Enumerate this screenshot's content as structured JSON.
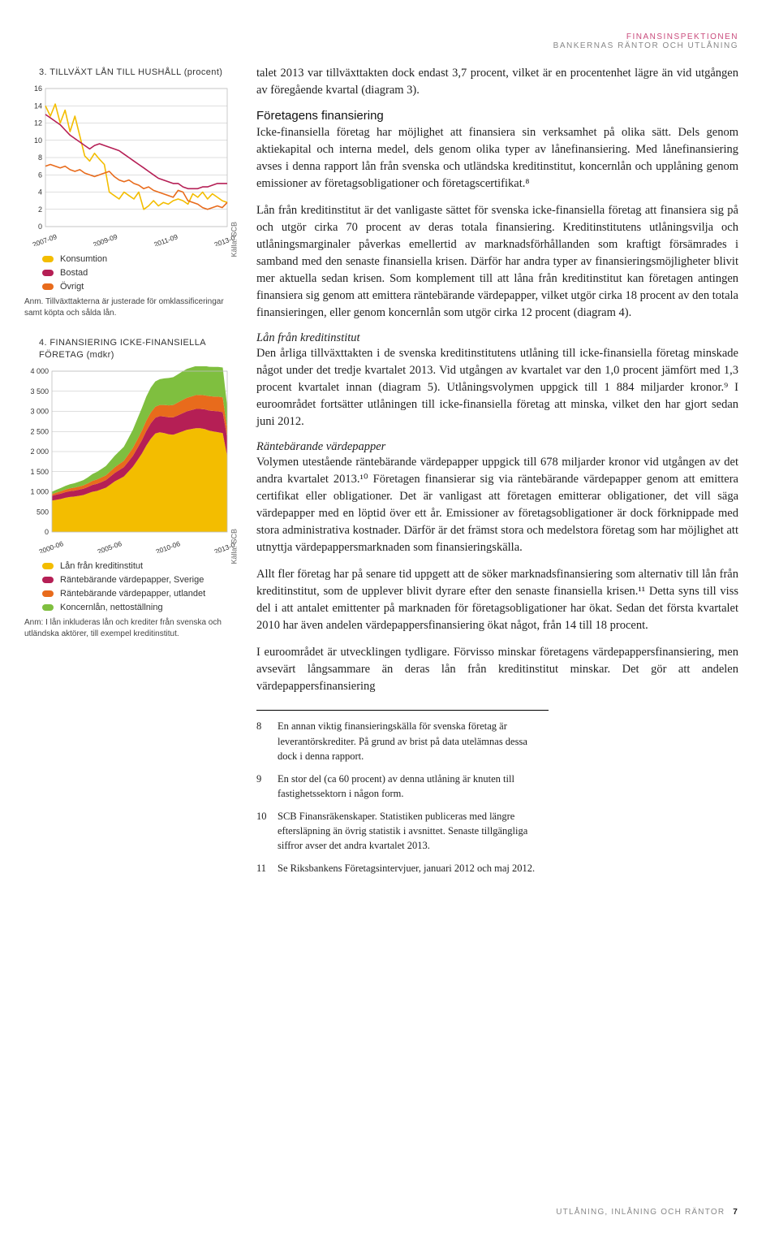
{
  "header": {
    "line1": "FINANSINSPEKTIONEN",
    "line2": "BANKERNAS RÄNTOR OCH UTLÅNING"
  },
  "chart3": {
    "title": "3. TILLVÄXT LÅN TILL HUSHÅLL (procent)",
    "type": "line",
    "ylim": [
      0,
      16
    ],
    "ytick_step": 2,
    "yticks": [
      0,
      2,
      4,
      6,
      8,
      10,
      12,
      14,
      16
    ],
    "x_labels": [
      "2007-09",
      "2009-09",
      "2011-09",
      "2013-09"
    ],
    "grid_color": "#bfbfbf",
    "line_width": 1.6,
    "series": {
      "konsumtion": {
        "label": "Konsumtion",
        "color": "#f3bd00",
        "points": [
          14.0,
          12.8,
          14.2,
          12.0,
          13.5,
          11.0,
          12.8,
          10.5,
          8.2,
          7.6,
          8.5,
          7.8,
          7.2,
          4.0,
          3.6,
          3.2,
          4.0,
          3.6,
          3.2,
          4.0,
          2.0,
          2.4,
          3.0,
          2.4,
          2.8,
          2.6,
          3.0,
          3.2,
          3.0,
          2.6,
          3.8,
          3.4,
          4.0,
          3.2,
          3.8,
          3.4,
          3.0,
          2.8
        ]
      },
      "bostad": {
        "label": "Bostad",
        "color": "#b51f55",
        "points": [
          13.0,
          12.6,
          12.2,
          11.8,
          11.2,
          10.6,
          10.2,
          9.8,
          9.4,
          9.0,
          9.4,
          9.6,
          9.4,
          9.2,
          9.0,
          8.8,
          8.4,
          8.0,
          7.6,
          7.2,
          6.8,
          6.4,
          6.0,
          5.6,
          5.4,
          5.2,
          5.0,
          5.0,
          4.6,
          4.4,
          4.4,
          4.4,
          4.6,
          4.6,
          4.8,
          5.0,
          5.0,
          5.0
        ]
      },
      "ovrigt": {
        "label": "Övrigt",
        "color": "#e86b1c",
        "points": [
          7.0,
          7.2,
          7.0,
          6.8,
          7.0,
          6.6,
          6.4,
          6.6,
          6.2,
          6.0,
          5.8,
          6.0,
          6.2,
          6.4,
          5.8,
          5.4,
          5.2,
          5.4,
          5.0,
          4.8,
          4.4,
          4.6,
          4.2,
          4.0,
          3.8,
          3.6,
          3.4,
          4.2,
          4.0,
          3.0,
          2.8,
          2.6,
          2.2,
          2.0,
          2.2,
          2.4,
          2.2,
          2.8
        ]
      }
    },
    "source": "Källa: SCB",
    "note": "Anm. Tillväxttakterna är justerade för omklassificeringar samt köpta och sålda lån."
  },
  "chart4": {
    "title": "4. FINANSIERING ICKE-FINANSIELLA FÖRETAG (mdkr)",
    "type": "area",
    "ylim": [
      0,
      4000
    ],
    "ytick_step": 500,
    "yticks": [
      0,
      500,
      1000,
      1500,
      2000,
      2500,
      3000,
      3500,
      4000
    ],
    "x_labels": [
      "2000-06",
      "2005-06",
      "2010-06",
      "2013-06"
    ],
    "grid_color": "#bfbfbf",
    "colors": {
      "lan": "#f3bd00",
      "rb_sv": "#b51f55",
      "rb_ut": "#e86b1c",
      "koncern": "#7fbf3f"
    },
    "stack": [
      {
        "key": "lan",
        "label": "Lån från kreditinstitut",
        "points": [
          780,
          800,
          820,
          850,
          870,
          880,
          900,
          920,
          960,
          1000,
          1020,
          1060,
          1100,
          1180,
          1260,
          1320,
          1380,
          1500,
          1620,
          1780,
          1950,
          2150,
          2320,
          2450,
          2480,
          2460,
          2430,
          2420,
          2460,
          2500,
          2540,
          2560,
          2580,
          2580,
          2560,
          2520,
          2500,
          2480,
          2460,
          1884
        ]
      },
      {
        "key": "rb_sv",
        "label": "Räntebärande värdepapper, Sverige",
        "points": [
          120,
          130,
          135,
          140,
          145,
          148,
          150,
          155,
          160,
          170,
          175,
          180,
          190,
          200,
          210,
          220,
          230,
          250,
          270,
          300,
          330,
          360,
          380,
          390,
          400,
          410,
          420,
          430,
          440,
          450,
          460,
          470,
          480,
          480,
          490,
          500,
          510,
          520,
          520,
          460
        ]
      },
      {
        "key": "rb_ut",
        "label": "Räntebärande värdepapper, utlandet",
        "points": [
          40,
          50,
          60,
          65,
          70,
          75,
          80,
          85,
          90,
          100,
          110,
          115,
          120,
          130,
          140,
          150,
          160,
          180,
          200,
          220,
          240,
          260,
          270,
          275,
          280,
          290,
          300,
          310,
          320,
          330,
          335,
          340,
          345,
          350,
          350,
          360,
          360,
          365,
          370,
          218
        ]
      },
      {
        "key": "koncern",
        "label": "Koncernlån, nettoställning",
        "points": [
          60,
          70,
          80,
          90,
          100,
          110,
          120,
          130,
          150,
          170,
          190,
          210,
          230,
          260,
          290,
          320,
          350,
          400,
          450,
          510,
          560,
          600,
          620,
          630,
          640,
          660,
          680,
          690,
          700,
          710,
          720,
          720,
          720,
          720,
          730,
          730,
          735,
          740,
          740,
          560
        ]
      }
    ],
    "source": "Källa: SCB",
    "note": "Anm: I lån inkluderas lån och krediter från svenska och utländska aktörer, till exempel kreditinstitut."
  },
  "body": {
    "p1": "talet 2013 var tillväxttakten dock endast 3,7 procent, vilket är en procentenhet lägre än vid utgången av föregående kvartal (diagram 3).",
    "h1": "Företagens finansiering",
    "p2": "Icke-finansiella företag har möjlighet att finansiera sin verksamhet på olika sätt. Dels genom aktiekapital och interna medel, dels genom olika typer av lånefinansiering. Med lånefinansiering avses i denna rapport lån från svenska och utländska kreditinstitut, koncernlån och upplåning genom emissioner av företagsobligationer och företagscertifikat.⁸",
    "p3": "Lån från kreditinstitut är det vanligaste sättet för svenska icke-finansiella företag att finansiera sig på och utgör cirka 70 procent av deras totala finansiering. Kreditinstitutens utlåningsvilja och utlåningsmarginaler påverkas emellertid av marknadsförhållanden som kraftigt försämrades i samband med den senaste finansiella krisen. Därför har andra typer av finansieringsmöjligheter blivit mer aktuella sedan krisen. Som komplement till att låna från kreditinstitut kan företagen antingen finansiera sig genom att emittera räntebärande värdepapper, vilket utgör cirka 18 procent av den totala finansieringen, eller genom koncernlån som utgör cirka 12 procent (diagram 4).",
    "i1": "Lån från kreditinstitut",
    "p4": "Den årliga tillväxttakten i de svenska kreditinstitutens utlåning till icke-finansiella företag minskade något under det tredje kvartalet 2013. Vid utgången av kvartalet var den 1,0 procent jämfört med 1,3 procent kvartalet innan (diagram 5). Utlåningsvolymen uppgick till 1 884 miljarder kronor.⁹ I euroområdet fortsätter utlåningen till icke-finansiella företag att minska, vilket den har gjort sedan juni 2012.",
    "i2": "Räntebärande värdepapper",
    "p5": "Volymen utestående räntebärande värdepapper uppgick till 678 miljarder kronor vid utgången av det andra kvartalet 2013.¹⁰ Företagen finansierar sig via räntebärande värdepapper genom att emittera certifikat eller obligationer. Det är vanligast att företagen emitterar obligationer, det vill säga värdepapper med en löptid över ett år. Emissioner av företagsobligationer är dock förknippade med stora administrativa kostnader. Därför är det främst stora och medelstora företag som har möjlighet att utnyttja värdepappersmarknaden som finansieringskälla.",
    "p6": "Allt fler företag har på senare tid uppgett att de söker marknadsfinansiering som alternativ till lån från kreditinstitut, som de upplever blivit dyrare efter den senaste finansiella krisen.¹¹ Detta syns till viss del i att antalet emittenter på marknaden för företagsobligationer har ökat. Sedan det första kvartalet 2010 har även andelen värdepappersfinansiering ökat något, från 14 till 18 procent.",
    "p7": "I euroområdet är utvecklingen tydligare. Förvisso minskar företagens värdepappersfinansiering, men avsevärt långsammare än deras lån från kreditinstitut minskar. Det gör att andelen värdepappersfinansiering"
  },
  "footnotes": {
    "f8": "En annan viktig finansieringskälla för svenska företag är leverantörskrediter. På grund av brist på data utelämnas dessa dock i denna rapport.",
    "f9": "En stor del (ca 60 procent) av denna utlåning är knuten till fastighetssektorn i någon form.",
    "f10": "SCB Finansräkenskaper. Statistiken publiceras med längre eftersläpning än övrig statistik i avsnittet. Senaste tillgängliga siffror avser det andra kvartalet 2013.",
    "f11": "Se Riksbankens Företagsintervjuer, januari 2012 och maj 2012."
  },
  "footer": {
    "section": "UTLÅNING, INLÅNING OCH RÄNTOR",
    "page": "7"
  }
}
